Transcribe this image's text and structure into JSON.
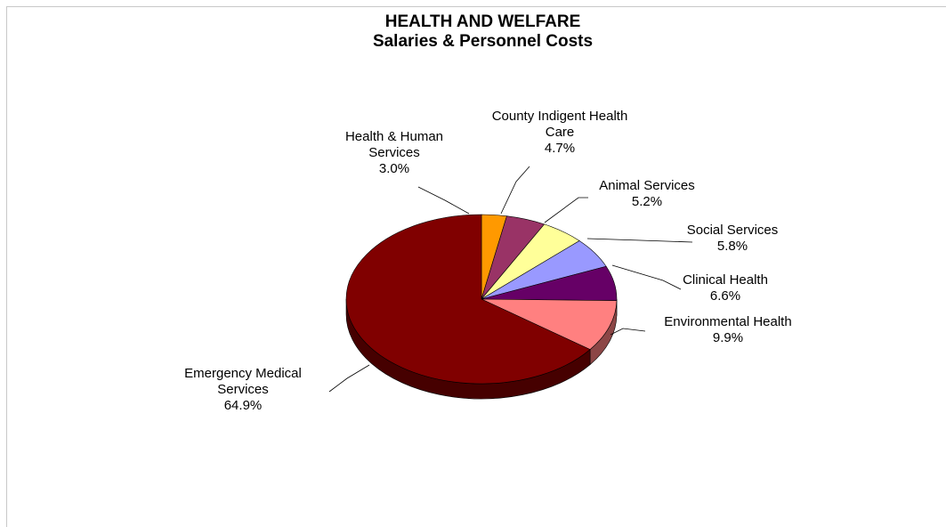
{
  "chart_data": {
    "type": "pie",
    "title": "HEALTH AND WELFARE",
    "subtitle": "Salaries & Personnel Costs",
    "legend": "none",
    "slices": [
      {
        "label": [
          "Health & Human",
          "Services"
        ],
        "name": "Health & Human Services",
        "value": 3.0,
        "pct_text": "3.0%",
        "color": "#FF9900"
      },
      {
        "label": [
          "County Indigent Health",
          "Care"
        ],
        "name": "County Indigent Health Care",
        "value": 4.7,
        "pct_text": "4.7%",
        "color": "#993366"
      },
      {
        "label": [
          "Animal Services"
        ],
        "name": "Animal Services",
        "value": 5.2,
        "pct_text": "5.2%",
        "color": "#FFFF99"
      },
      {
        "label": [
          "Social Services"
        ],
        "name": "Social Services",
        "value": 5.8,
        "pct_text": "5.8%",
        "color": "#9999FF"
      },
      {
        "label": [
          "Clinical Health"
        ],
        "name": "Clinical Health",
        "value": 6.6,
        "pct_text": "6.6%",
        "color": "#660066"
      },
      {
        "label": [
          "Environmental Health"
        ],
        "name": "Environmental Health",
        "value": 9.9,
        "pct_text": "9.9%",
        "color": "#FF8080"
      },
      {
        "label": [
          "Emergency Medical",
          "Services"
        ],
        "name": "Emergency Medical Services",
        "value": 64.9,
        "pct_text": "64.9%",
        "color": "#800000"
      }
    ]
  }
}
